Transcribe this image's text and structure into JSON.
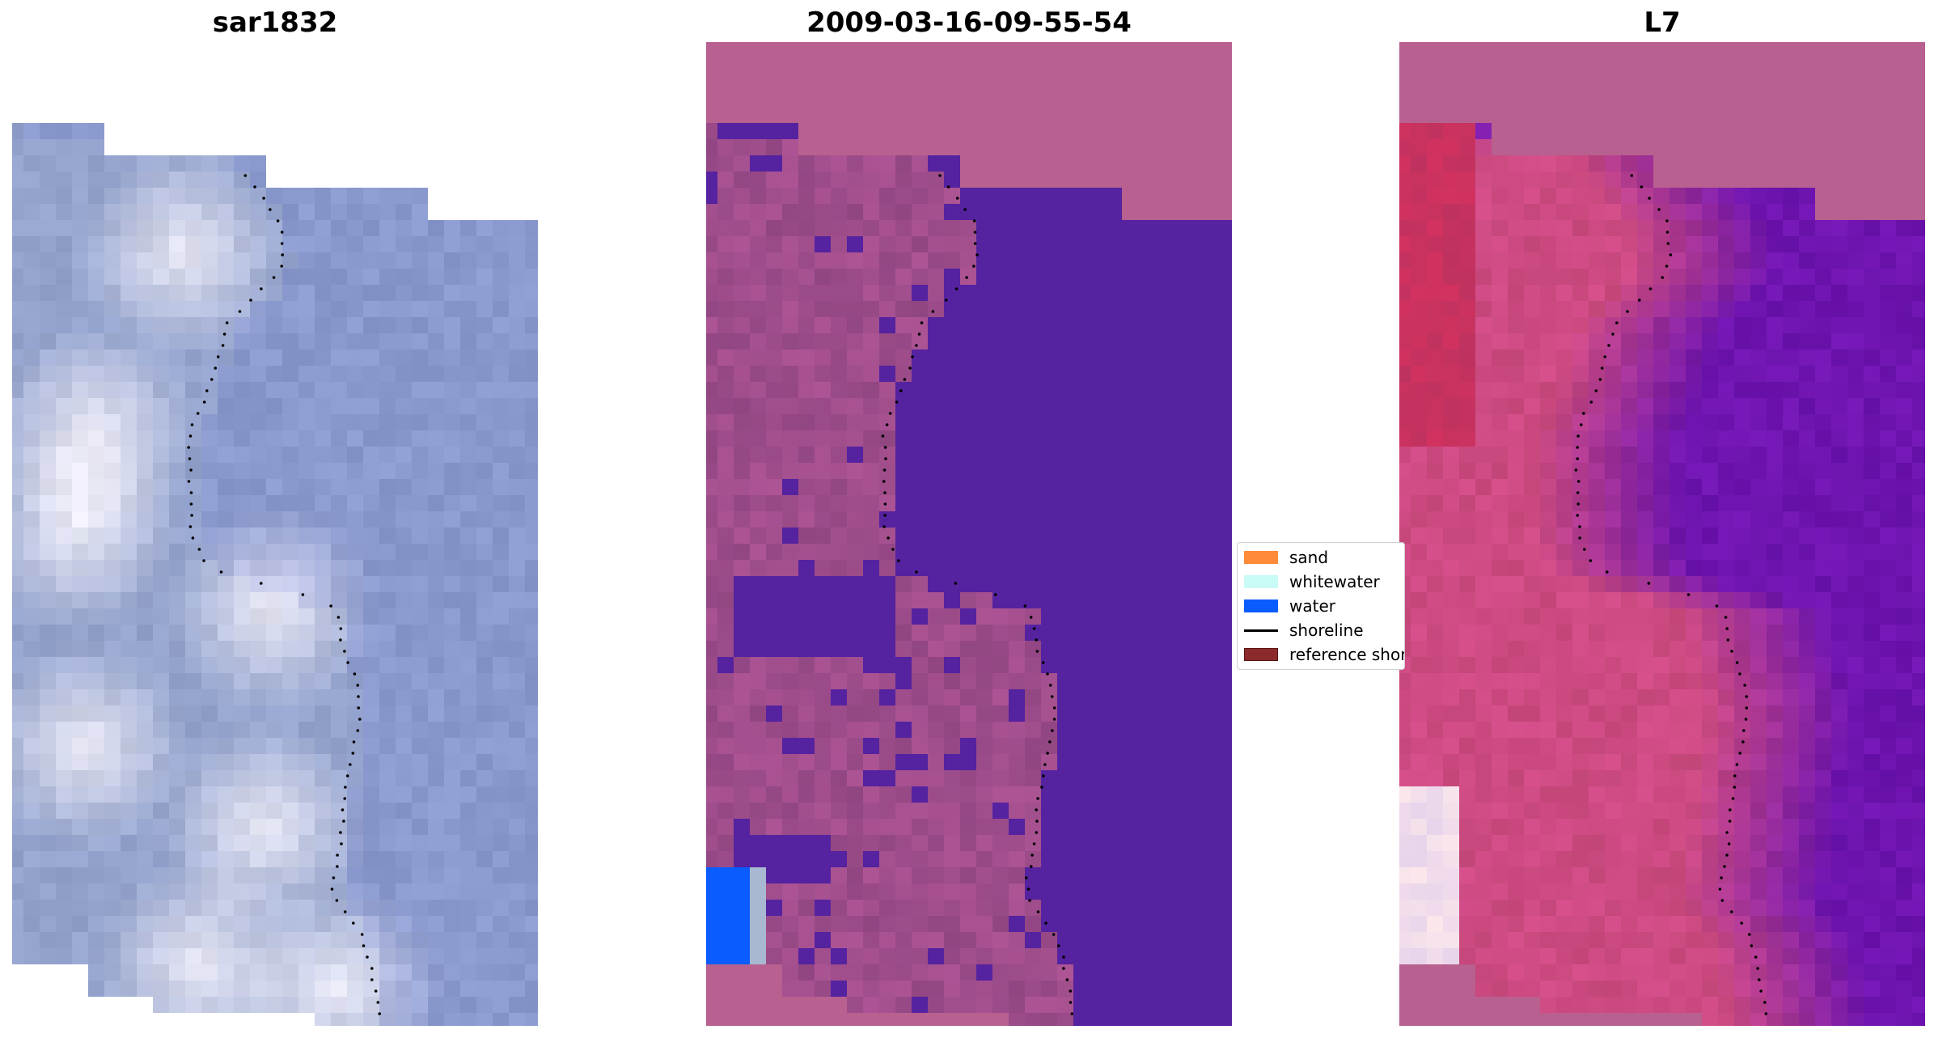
{
  "panels": [
    {
      "title": "sar1832",
      "image": "rgb-composite"
    },
    {
      "title": "2009-03-16-09-55-54",
      "image": "classified-overlay"
    },
    {
      "title": "L7",
      "image": "index-map"
    }
  ],
  "legend": {
    "items": [
      {
        "label": "sand",
        "color": "#ff8a3a",
        "kind": "patch"
      },
      {
        "label": "whitewater",
        "color": "#c8fbf6",
        "kind": "patch"
      },
      {
        "label": "water",
        "color": "#0a5cff",
        "kind": "patch"
      },
      {
        "label": "shoreline",
        "color": "#000000",
        "kind": "line"
      },
      {
        "label": "reference shoreline",
        "color": "#8b2a2a",
        "kind": "patch"
      }
    ]
  },
  "colors": {
    "rgb_base": "#9aa8cf",
    "class_land": "#a04e8e",
    "class_water": "#5522a0",
    "class_nodata": "#b8608f",
    "class_water_blue": "#0a5cff",
    "index_pink": "#cf4e84",
    "index_purple": "#6a169f"
  }
}
